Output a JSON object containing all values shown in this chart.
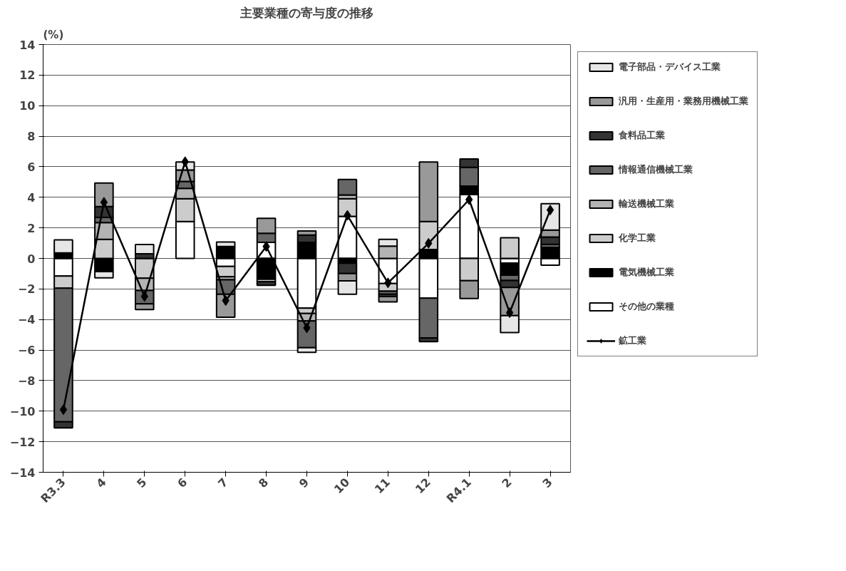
{
  "chart_data": {
    "type": "bar",
    "stacked": true,
    "title": "主要業種の寄与度の推移",
    "ylabel": "(%)",
    "categories": [
      "R3.3",
      "4",
      "5",
      "6",
      "7",
      "8",
      "9",
      "10",
      "11",
      "12",
      "R4.1",
      "2",
      "3"
    ],
    "ylim": [
      -14,
      14
    ],
    "yticks": [
      -14,
      -12,
      -10,
      -8,
      -6,
      -4,
      -2,
      0,
      2,
      4,
      6,
      8,
      10,
      12,
      14
    ],
    "grid": "y",
    "legend": "right",
    "marker": "diamond",
    "series": [
      {
        "name": "その他の業種",
        "color": "#ffffff",
        "values": [
          -1.15,
          null,
          null,
          2.41,
          -0.52,
          1.05,
          -3.25,
          2.75,
          -1.65,
          -2.6,
          4.19,
          -0.3,
          -0.44
        ]
      },
      {
        "name": "電気機械工業",
        "color": "#000000",
        "values": [
          0.26,
          -0.86,
          null,
          null,
          0.78,
          -1.36,
          1.05,
          -0.31,
          null,
          0.58,
          0.55,
          -0.8,
          0.72
        ]
      },
      {
        "name": "化学工業",
        "color": "#cccccc",
        "values": [
          -0.8,
          1.25,
          -1.3,
          1.5,
          -0.68,
          -0.17,
          -0.35,
          1.16,
          -0.5,
          1.83,
          -1.46,
          1.35,
          null
        ]
      },
      {
        "name": "輸送機械工業",
        "color": "#b3b3b3",
        "values": [
          0.1,
          1.09,
          -0.8,
          0.68,
          -0.2,
          null,
          -0.5,
          0.24,
          0.8,
          null,
          null,
          null,
          null
        ]
      },
      {
        "name": "情報通信機械工業",
        "color": "#666666",
        "values": [
          -8.75,
          0.34,
          -0.88,
          0.45,
          -0.95,
          0.59,
          -1.75,
          1.02,
          -0.2,
          -2.6,
          1.22,
          -0.35,
          0.2
        ]
      },
      {
        "name": "食料品工業",
        "color": "#333333",
        "values": [
          -0.4,
          0.71,
          0.3,
          null,
          null,
          -0.23,
          0.48,
          -0.68,
          -0.15,
          -0.25,
          0.55,
          -0.45,
          0.48
        ]
      },
      {
        "name": "汎用・生産用・業務用機械工業",
        "color": "#999999",
        "values": [
          null,
          1.54,
          -0.37,
          0.75,
          -1.5,
          0.98,
          0.27,
          -0.48,
          -0.35,
          3.9,
          -1.16,
          -1.85,
          0.45
        ]
      },
      {
        "name": "電子部品・デバイス工業",
        "color": "#e6e6e6",
        "values": [
          0.85,
          -0.41,
          0.61,
          0.52,
          0.29,
          null,
          -0.3,
          -0.88,
          0.45,
          null,
          null,
          -1.1,
          1.73
        ]
      },
      {
        "name": "鉱工業",
        "type": "line",
        "color": "#000000",
        "values": [
          -9.9,
          3.67,
          -2.49,
          6.33,
          -2.76,
          0.78,
          -4.55,
          2.82,
          -1.6,
          0.99,
          3.85,
          -3.55,
          3.17
        ]
      }
    ]
  }
}
